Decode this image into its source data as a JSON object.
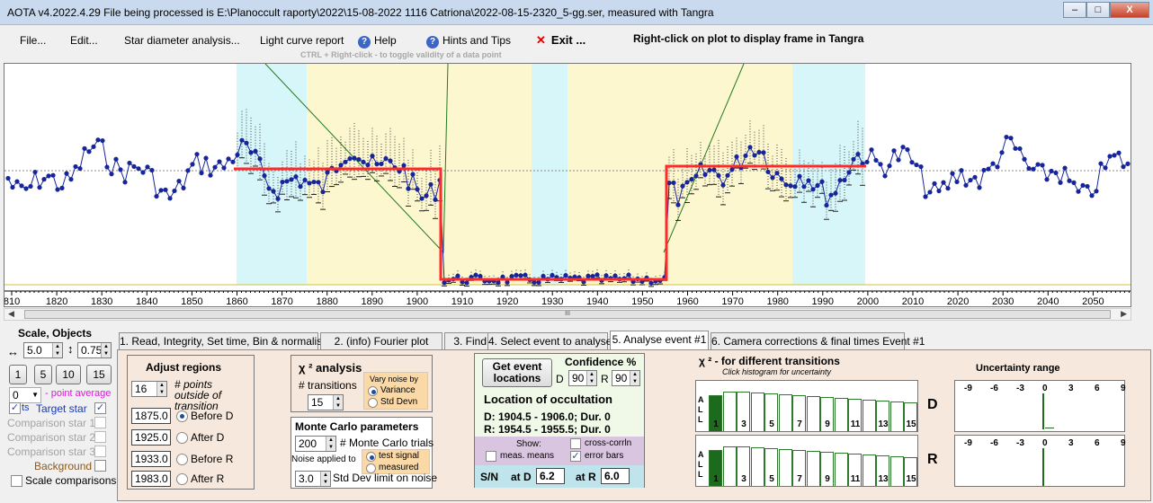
{
  "window": {
    "title": "AOTA v4.2022.4.29    File being processed is E:\\Planoccult raporty\\2022\\15-08-2022 1116 Catriona\\2022-08-15-2320_5-gg.ser, measured with Tangra",
    "minimize": "–",
    "maximize": "□",
    "close": "X"
  },
  "menu": {
    "file": "File...",
    "edit": "Edit...",
    "star_diameter": "Star diameter analysis...",
    "light_curve": "Light curve report",
    "help": "Help",
    "hints": "Hints and Tips",
    "exit": "Exit ...",
    "exit_icon": "x-icon",
    "help_icon": "question-icon",
    "right_click_hint": "Right-click on plot to display frame in Tangra",
    "ctrl_hint": "CTRL + Right-click  -  to toggle validity of a data point"
  },
  "plot": {
    "x_ticks": [
      "810",
      "1820",
      "1830",
      "1840",
      "1850",
      "1860",
      "1870",
      "1880",
      "1890",
      "1900",
      "1910",
      "1920",
      "1930",
      "1940",
      "1950",
      "1960",
      "1970",
      "1980",
      "1990",
      "2000",
      "2010",
      "2020",
      "2030",
      "2040",
      "2050"
    ],
    "scroll_grip": "III"
  },
  "left_panel": {
    "title": "Scale,  Objects",
    "scale_value": "5.0",
    "object_value": "0.75",
    "buttons": [
      "1",
      "5",
      "10",
      "15"
    ],
    "point_avg_value": "0",
    "point_avg_label": "- point average",
    "target_prefix": "ts",
    "target_star": "Target star",
    "comparison_1": "Comparison star 1",
    "comparison_2": "Comparison star 2",
    "comparison_3": "Comparison star 3",
    "background": "Background",
    "scale_comparisons": "Scale comparisons"
  },
  "tabs": [
    "1.  Read, Integrity, Set time, Bin & normalise",
    "2. (info)  Fourier plot",
    "3. Find events",
    "4. Select event to analyse",
    "5. Analyse event #1",
    "6. Camera corrections & final times Event #1"
  ],
  "adjust_regions": {
    "title": "Adjust regions",
    "points_value": "16",
    "points_label": "# points outside of transition",
    "rows": [
      {
        "value": "1875.0",
        "label": "Before D"
      },
      {
        "value": "1925.0",
        "label": "After D"
      },
      {
        "value": "1933.0",
        "label": "Before R"
      },
      {
        "value": "1983.0",
        "label": "After R"
      }
    ]
  },
  "chi2_analysis": {
    "title": "χ ² analysis",
    "transitions_label": "# transitions",
    "transitions_value": "15",
    "vary_noise_title": "Vary noise by",
    "variance": "Variance",
    "std_devn": "Std Devn"
  },
  "monte_carlo": {
    "title": "Monte Carlo parameters",
    "trials_value": "200",
    "trials_label": "# Monte Carlo trials",
    "noise_applied": "Noise applied to",
    "test_signal": "test signal",
    "measured": "measured",
    "std_value": "3.0",
    "std_label": "Std Dev limit on noise"
  },
  "location": {
    "get_button": "Get event locations",
    "confidence_title": "Confidence %",
    "d_label": "D",
    "d_value": "90",
    "r_label": "R",
    "r_value": "90",
    "title": "Location of occultation",
    "d_line": "D: 1904.5 - 1906.0; Dur. 0",
    "r_line": "R: 1954.5 - 1955.5; Dur. 0",
    "show_label": "Show:",
    "meas_means": "meas. means",
    "cross_corrln": "cross-corrln",
    "error_bars": "error bars",
    "sn_label": "S/N",
    "at_d_label": "at D",
    "at_d_value": "6.2",
    "at_r_label": "at R",
    "at_r_value": "6.0"
  },
  "chi2_hist": {
    "title": "χ ²  - for different transitions",
    "subtitle": "Click histogram for uncertainty",
    "axis_letters": [
      "A",
      "L",
      "L"
    ],
    "labels": [
      "1",
      "3",
      "5",
      "7",
      "9",
      "11",
      "13",
      "15"
    ],
    "d_label": "D",
    "r_label": "R"
  },
  "uncertainty": {
    "title": "Uncertainty range",
    "ticks": [
      "-9",
      "-6",
      "-3",
      "0",
      "3",
      "6",
      "9"
    ]
  },
  "colors": {
    "plot_cyan": "#d7f6f9",
    "plot_yellow": "#fdf7cf",
    "fit_red": "#ff2a2a",
    "data_blue": "#17259a",
    "model_green": "#207a20"
  }
}
